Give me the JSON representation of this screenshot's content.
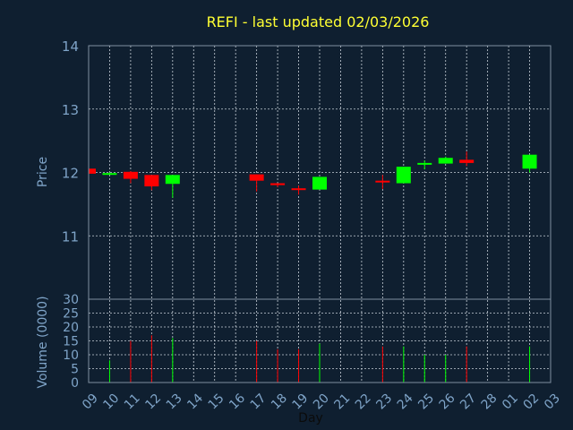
{
  "chart_data": {
    "type": "candlestick",
    "title": "REFI - last updated 02/03/2026",
    "ylabel": "Price",
    "volume_label": "Volume (0000)",
    "xlabel": "Day",
    "ylim": [
      10.0,
      14.0
    ],
    "volume_ylim": [
      0,
      30
    ],
    "price_ticks": [
      "11",
      "12",
      "13",
      "14"
    ],
    "volume_ticks": [
      "0",
      "5",
      "10",
      "15",
      "20",
      "25",
      "30"
    ],
    "x_ticks": [
      "09",
      "10",
      "11",
      "12",
      "13",
      "14",
      "15",
      "16",
      "17",
      "18",
      "19",
      "20",
      "21",
      "22",
      "23",
      "24",
      "25",
      "26",
      "27",
      "28",
      "01",
      "02",
      "03"
    ],
    "colors": {
      "up": "#00ff00",
      "down": "#ff0000",
      "background": "#0f1f30",
      "title": "#ffff33",
      "axis_text": "#7fa4c8"
    },
    "candles": [
      {
        "day": "09",
        "open": 12.06,
        "close": 11.98,
        "high": 12.06,
        "low": 11.98,
        "volume": 0
      },
      {
        "day": "10",
        "open": 11.98,
        "close": 11.99,
        "high": 12.0,
        "low": 11.98,
        "volume": 8
      },
      {
        "day": "11",
        "open": 12.01,
        "close": 11.9,
        "high": 12.02,
        "low": 11.83,
        "volume": 15
      },
      {
        "day": "12",
        "open": 11.96,
        "close": 11.78,
        "high": 11.96,
        "low": 11.72,
        "volume": 17
      },
      {
        "day": "13",
        "open": 11.82,
        "close": 11.96,
        "high": 11.96,
        "low": 11.6,
        "volume": 16
      },
      {
        "day": "17",
        "open": 11.97,
        "close": 11.87,
        "high": 11.97,
        "low": 11.7,
        "volume": 15
      },
      {
        "day": "18",
        "open": 11.83,
        "close": 11.8,
        "high": 11.83,
        "low": 11.77,
        "volume": 12
      },
      {
        "day": "19",
        "open": 11.75,
        "close": 11.73,
        "high": 11.79,
        "low": 11.65,
        "volume": 12
      },
      {
        "day": "20",
        "open": 11.73,
        "close": 11.93,
        "high": 11.93,
        "low": 11.73,
        "volume": 14
      },
      {
        "day": "23",
        "open": 11.87,
        "close": 11.85,
        "high": 11.96,
        "low": 11.74,
        "volume": 13
      },
      {
        "day": "24",
        "open": 11.83,
        "close": 12.09,
        "high": 12.09,
        "low": 11.83,
        "volume": 13
      },
      {
        "day": "25",
        "open": 12.13,
        "close": 12.15,
        "high": 12.19,
        "low": 12.05,
        "volume": 10
      },
      {
        "day": "26",
        "open": 12.14,
        "close": 12.23,
        "high": 12.25,
        "low": 12.14,
        "volume": 10
      },
      {
        "day": "27",
        "open": 12.2,
        "close": 12.15,
        "high": 12.33,
        "low": 12.1,
        "volume": 13
      },
      {
        "day": "02",
        "open": 12.06,
        "close": 12.28,
        "high": 12.28,
        "low": 12.0,
        "volume": 13
      }
    ]
  }
}
